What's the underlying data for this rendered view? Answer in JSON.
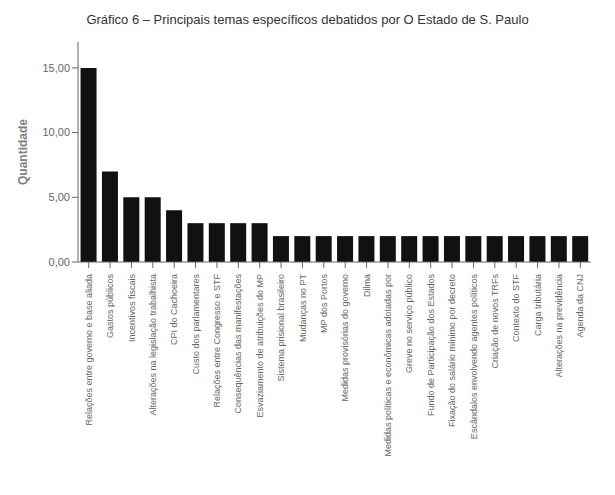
{
  "chart_data": {
    "type": "bar",
    "title": "Gráfico 6 – Principais temas específicos debatidos por O Estado de S. Paulo",
    "ylabel": "Quantidade",
    "categories": [
      "Relações entre governo e base aliada",
      "Gastos públicos",
      "Incentivos fiscais",
      "Alterações na legislação trabalhista",
      "CPI do Cachoeira",
      "Custo dos parlamentares",
      "Relações entre Congresso e STF",
      "Consequências das manifestações",
      "Esvaziamento de atribuições do MP",
      "Sistema prisional brasileiro",
      "Mudanças no PT",
      "MP dos Portos",
      "Medidas provisórias do governo",
      "Dilma",
      "Medidas políticas e econômicas adotadas por",
      "Greve no serviço público",
      "Fundo de Participação dos Estados",
      "Fixação do salário mínimo por decreto",
      "Escândalos envolvendo agentes políticos",
      "Criação de novos TRFs",
      "Contexto do STF",
      "Carga tributária",
      "Alterações na previdência",
      "Agenda da CNJ"
    ],
    "values": [
      15,
      7,
      5,
      5,
      4,
      3,
      3,
      3,
      3,
      2,
      2,
      2,
      2,
      2,
      2,
      2,
      2,
      2,
      2,
      2,
      2,
      2,
      2,
      2
    ],
    "color": "#111111",
    "ylim": [
      0,
      17
    ],
    "yticks": [
      {
        "value": 0,
        "label": "0,00"
      },
      {
        "value": 5,
        "label": "5,00"
      },
      {
        "value": 10,
        "label": "10,00"
      },
      {
        "value": 15,
        "label": "15,00"
      }
    ],
    "grid": false
  }
}
